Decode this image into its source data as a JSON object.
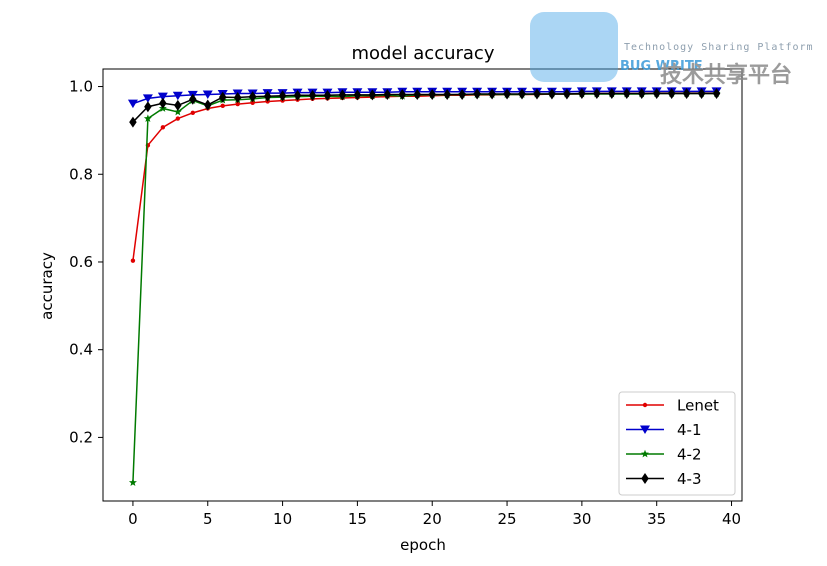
{
  "chart_data": {
    "type": "line",
    "title": "model accuracy",
    "xlabel": "epoch",
    "ylabel": "accuracy",
    "xlim": [
      -2,
      40.7
    ],
    "ylim": [
      0.055,
      1.04
    ],
    "xticks": [
      0,
      5,
      10,
      15,
      20,
      25,
      30,
      35,
      40
    ],
    "yticks": [
      0.2,
      0.4,
      0.6,
      0.8,
      1.0
    ],
    "xtick_labels": [
      "0",
      "5",
      "10",
      "15",
      "20",
      "25",
      "30",
      "35",
      "40"
    ],
    "ytick_labels": [
      "0.2",
      "0.4",
      "0.6",
      "0.8",
      "1.0"
    ],
    "legend_position": "lower-right",
    "x": [
      0,
      1,
      2,
      3,
      4,
      5,
      6,
      7,
      8,
      9,
      10,
      11,
      12,
      13,
      14,
      15,
      16,
      17,
      18,
      19,
      20,
      21,
      22,
      23,
      24,
      25,
      26,
      27,
      28,
      29,
      30,
      31,
      32,
      33,
      34,
      35,
      36,
      37,
      38,
      39
    ],
    "series": [
      {
        "name": "Lenet",
        "color": "#e00000",
        "marker": "dot",
        "values": [
          0.603,
          0.866,
          0.907,
          0.927,
          0.94,
          0.95,
          0.956,
          0.96,
          0.963,
          0.966,
          0.968,
          0.97,
          0.972,
          0.973,
          0.974,
          0.975,
          0.976,
          0.977,
          0.978,
          0.978,
          0.979,
          0.98,
          0.98,
          0.981,
          0.981,
          0.982,
          0.982,
          0.982,
          0.983,
          0.983,
          0.983,
          0.984,
          0.984,
          0.984,
          0.984,
          0.985,
          0.985,
          0.985,
          0.985,
          0.985
        ]
      },
      {
        "name": "4-1",
        "color": "#0000cc",
        "marker": "triangle-down",
        "values": [
          0.961,
          0.973,
          0.977,
          0.979,
          0.981,
          0.982,
          0.983,
          0.984,
          0.984,
          0.985,
          0.985,
          0.986,
          0.986,
          0.986,
          0.987,
          0.987,
          0.987,
          0.987,
          0.988,
          0.988,
          0.988,
          0.988,
          0.988,
          0.988,
          0.988,
          0.988,
          0.988,
          0.988,
          0.988,
          0.988,
          0.989,
          0.989,
          0.989,
          0.989,
          0.989,
          0.989,
          0.989,
          0.989,
          0.989,
          0.989
        ]
      },
      {
        "name": "4-2",
        "color": "#007a00",
        "marker": "star",
        "values": [
          0.097,
          0.927,
          0.95,
          0.942,
          0.968,
          0.956,
          0.969,
          0.97,
          0.972,
          0.975,
          0.976,
          0.977,
          0.978,
          0.978,
          0.977,
          0.979,
          0.979,
          0.98,
          0.978,
          0.981,
          0.981,
          0.981,
          0.982,
          0.982,
          0.982,
          0.982,
          0.982,
          0.983,
          0.983,
          0.983,
          0.983,
          0.983,
          0.983,
          0.983,
          0.983,
          0.984,
          0.984,
          0.984,
          0.984,
          0.984
        ]
      },
      {
        "name": "4-3",
        "color": "#000000",
        "marker": "diamond",
        "values": [
          0.919,
          0.954,
          0.962,
          0.957,
          0.971,
          0.958,
          0.976,
          0.975,
          0.977,
          0.978,
          0.979,
          0.98,
          0.98,
          0.98,
          0.981,
          0.981,
          0.981,
          0.982,
          0.982,
          0.982,
          0.982,
          0.982,
          0.982,
          0.983,
          0.983,
          0.983,
          0.983,
          0.983,
          0.983,
          0.983,
          0.984,
          0.984,
          0.984,
          0.984,
          0.984,
          0.984,
          0.984,
          0.984,
          0.984,
          0.984
        ]
      }
    ]
  },
  "watermark": {
    "logo_text": "BUG WRITE",
    "tagline": "Technology Sharing Platform",
    "cn_text": "技术共享平台"
  }
}
